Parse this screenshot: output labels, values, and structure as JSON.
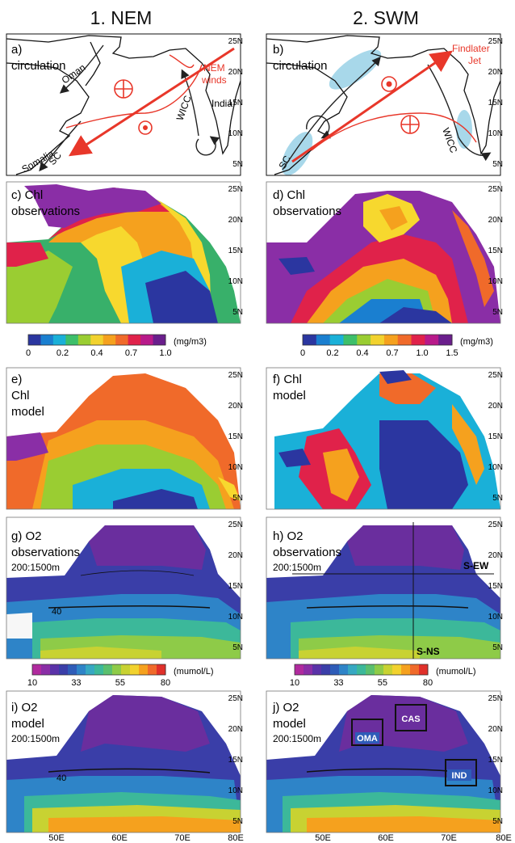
{
  "columns": [
    {
      "id": "nem",
      "title": "1. NEM"
    },
    {
      "id": "swm",
      "title": "2. SWM"
    }
  ],
  "lat_ticks": [
    "25N",
    "20N",
    "15N",
    "10N",
    "5N"
  ],
  "lon_ticks": [
    "50E",
    "60E",
    "70E",
    "80E"
  ],
  "panels": {
    "a": {
      "label_1": "a)",
      "label_2": "circulation",
      "annotations": {
        "oman": "Oman",
        "somalia": "Somalia",
        "sc": "SC",
        "wicc": "WICC",
        "india": "India",
        "winds_1": "NEM",
        "winds_2": "winds"
      }
    },
    "b": {
      "label_1": "b)",
      "label_2": "circulation",
      "annotations": {
        "jet_1": "Findlater",
        "jet_2": "Jet",
        "sc": "SC",
        "wicc": "WICC"
      }
    },
    "c": {
      "label_1": "c) Chl",
      "label_2": "observations"
    },
    "d": {
      "label_1": "d) Chl",
      "label_2": "observations"
    },
    "e": {
      "label_1": "e)",
      "label_2": "Chl",
      "label_3": "model"
    },
    "f": {
      "label_1": "f) Chl",
      "label_2": "model"
    },
    "g": {
      "label_1": "g) O2",
      "label_2": "observations",
      "label_3": "200:1500m",
      "contour": "40"
    },
    "h": {
      "label_1": "h) O2",
      "label_2": "observations",
      "label_3": "200:1500m",
      "section_ew": "S-EW",
      "section_ns": "S-NS"
    },
    "i": {
      "label_1": "i) O2",
      "label_2": "model",
      "label_3": "200:1500m",
      "contour": "40"
    },
    "j": {
      "label_1": "j) O2",
      "label_2": "model",
      "label_3": "200:1500m",
      "boxes": [
        "OMA",
        "CAS",
        "IND"
      ]
    }
  },
  "colorbars": {
    "chl_nem": {
      "ticks": [
        "0",
        "0.2",
        "0.4",
        "0.7",
        "1.0"
      ],
      "unit": "(mg/m3)",
      "colors": [
        "#2b36a0",
        "#1a7fd0",
        "#1ab0d8",
        "#3dbf6a",
        "#9acd32",
        "#f2d22e",
        "#f5a11e",
        "#f06a2a",
        "#e0224a",
        "#b81a8a",
        "#6a1e8c"
      ]
    },
    "chl_swm": {
      "ticks": [
        "0",
        "0.2",
        "0.4",
        "0.7",
        "1.0",
        "1.5"
      ],
      "unit": "(mg/m3)",
      "colors": [
        "#2b36a0",
        "#1a7fd0",
        "#1ab0d8",
        "#3dbf6a",
        "#9acd32",
        "#f2d22e",
        "#f5a11e",
        "#f06a2a",
        "#e0224a",
        "#b81a8a",
        "#6a1e8c"
      ]
    },
    "o2_nem": {
      "ticks": [
        "10",
        "33",
        "55",
        "80"
      ],
      "unit": "(mumol/L)",
      "colors": [
        "#b02a9e",
        "#8a2ea6",
        "#5a32a8",
        "#3a3ea8",
        "#2e5cb8",
        "#2e84c8",
        "#36a8c2",
        "#3cb89a",
        "#5abf6e",
        "#8ecb48",
        "#c8d232",
        "#f2d22e",
        "#f5a11e",
        "#f06a2a",
        "#e0302a"
      ]
    },
    "o2_swm": {
      "ticks": [
        "10",
        "33",
        "55",
        "80"
      ],
      "unit": "(mumol/L)",
      "colors": [
        "#b02a9e",
        "#8a2ea6",
        "#5a32a8",
        "#3a3ea8",
        "#2e5cb8",
        "#2e84c8",
        "#36a8c2",
        "#3cb89a",
        "#5abf6e",
        "#8ecb48",
        "#c8d232",
        "#f2d22e",
        "#f5a11e",
        "#f06a2a",
        "#e0302a"
      ]
    }
  }
}
